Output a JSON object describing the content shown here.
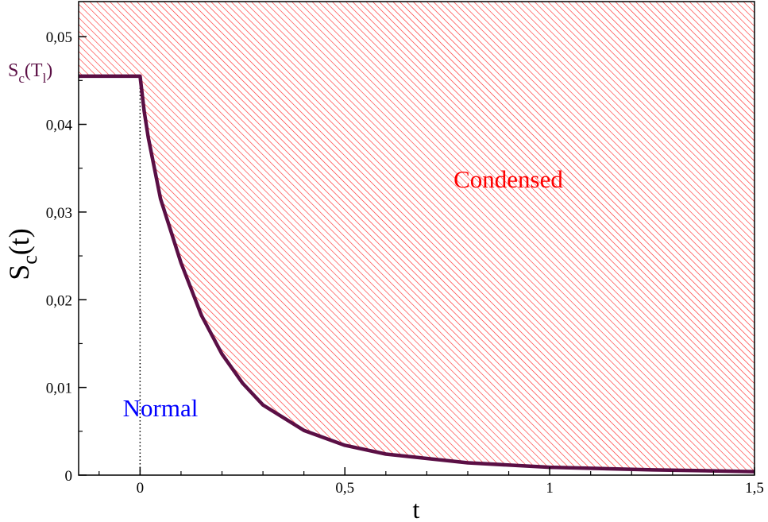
{
  "chart_data": {
    "type": "line",
    "x": [
      -0.15,
      0,
      0.01,
      0.02,
      0.05,
      0.1,
      0.15,
      0.2,
      0.25,
      0.3,
      0.4,
      0.5,
      0.6,
      0.8,
      1.0,
      1.25,
      1.5
    ],
    "series": [
      {
        "name": "S_c(t)",
        "color": "#5b0f45",
        "values": [
          0.0455,
          0.0455,
          0.0415,
          0.0385,
          0.0315,
          0.0242,
          0.0182,
          0.0138,
          0.0105,
          0.008,
          0.0051,
          0.0034,
          0.0024,
          0.0014,
          0.0009,
          0.0006,
          0.0004
        ]
      }
    ],
    "xlim": [
      -0.15,
      1.5
    ],
    "ylim": [
      0,
      0.054
    ],
    "xticks": [
      0,
      {
        "value": 0.5,
        "label": "0,5"
      },
      1,
      {
        "value": 1.5,
        "label": "1,5"
      }
    ],
    "yticks": [
      0,
      {
        "value": 0.01,
        "label": "0,01"
      },
      {
        "value": 0.02,
        "label": "0,02"
      },
      {
        "value": 0.03,
        "label": "0,03"
      },
      {
        "value": 0.04,
        "label": "0,04"
      },
      {
        "value": 0.05,
        "label": "0,05"
      }
    ],
    "xminorticks": [
      -0.1,
      0.1,
      0.2,
      0.3,
      0.4,
      0.6,
      0.7,
      0.8,
      0.9,
      1.1,
      1.2,
      1.3,
      1.4
    ],
    "yminorticks": [
      0.005,
      0.015,
      0.025,
      0.035,
      0.045
    ],
    "xlabel": "t",
    "ylabel": {
      "base": "S",
      "sub": "c",
      "rest": "(t)"
    },
    "annotations": {
      "level": {
        "base": "S",
        "sub": "c",
        "open": "(T",
        "sub2": "l",
        "close": ")"
      },
      "condensed": "Condensed",
      "normal": "Normal"
    },
    "hatch_color": "#ff2020"
  }
}
